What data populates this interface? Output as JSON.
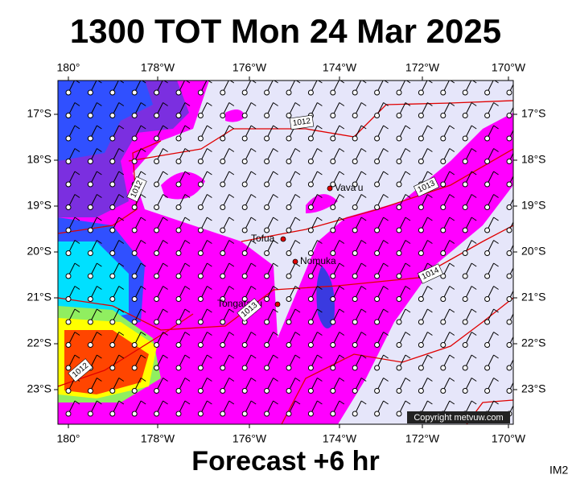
{
  "header": {
    "title": "1300 TOT Mon 24 Mar 2025"
  },
  "map": {
    "lon_labels": [
      "180°",
      "178°W",
      "176°W",
      "174°W",
      "172°W",
      "170°W"
    ],
    "lat_labels": [
      "17°S",
      "18°S",
      "19°S",
      "20°S",
      "21°S",
      "22°S",
      "23°S"
    ],
    "places": [
      "Vava'u",
      "Tofua",
      "Nomuka",
      "Tongatapu"
    ],
    "isobar_labels": [
      "1012",
      "1012",
      "1013",
      "1014",
      "1013",
      "1012"
    ],
    "copyright": "Copyright metvuw.com"
  },
  "footer": {
    "subtitle": "Forecast +6 hr",
    "code": "IM2"
  }
}
